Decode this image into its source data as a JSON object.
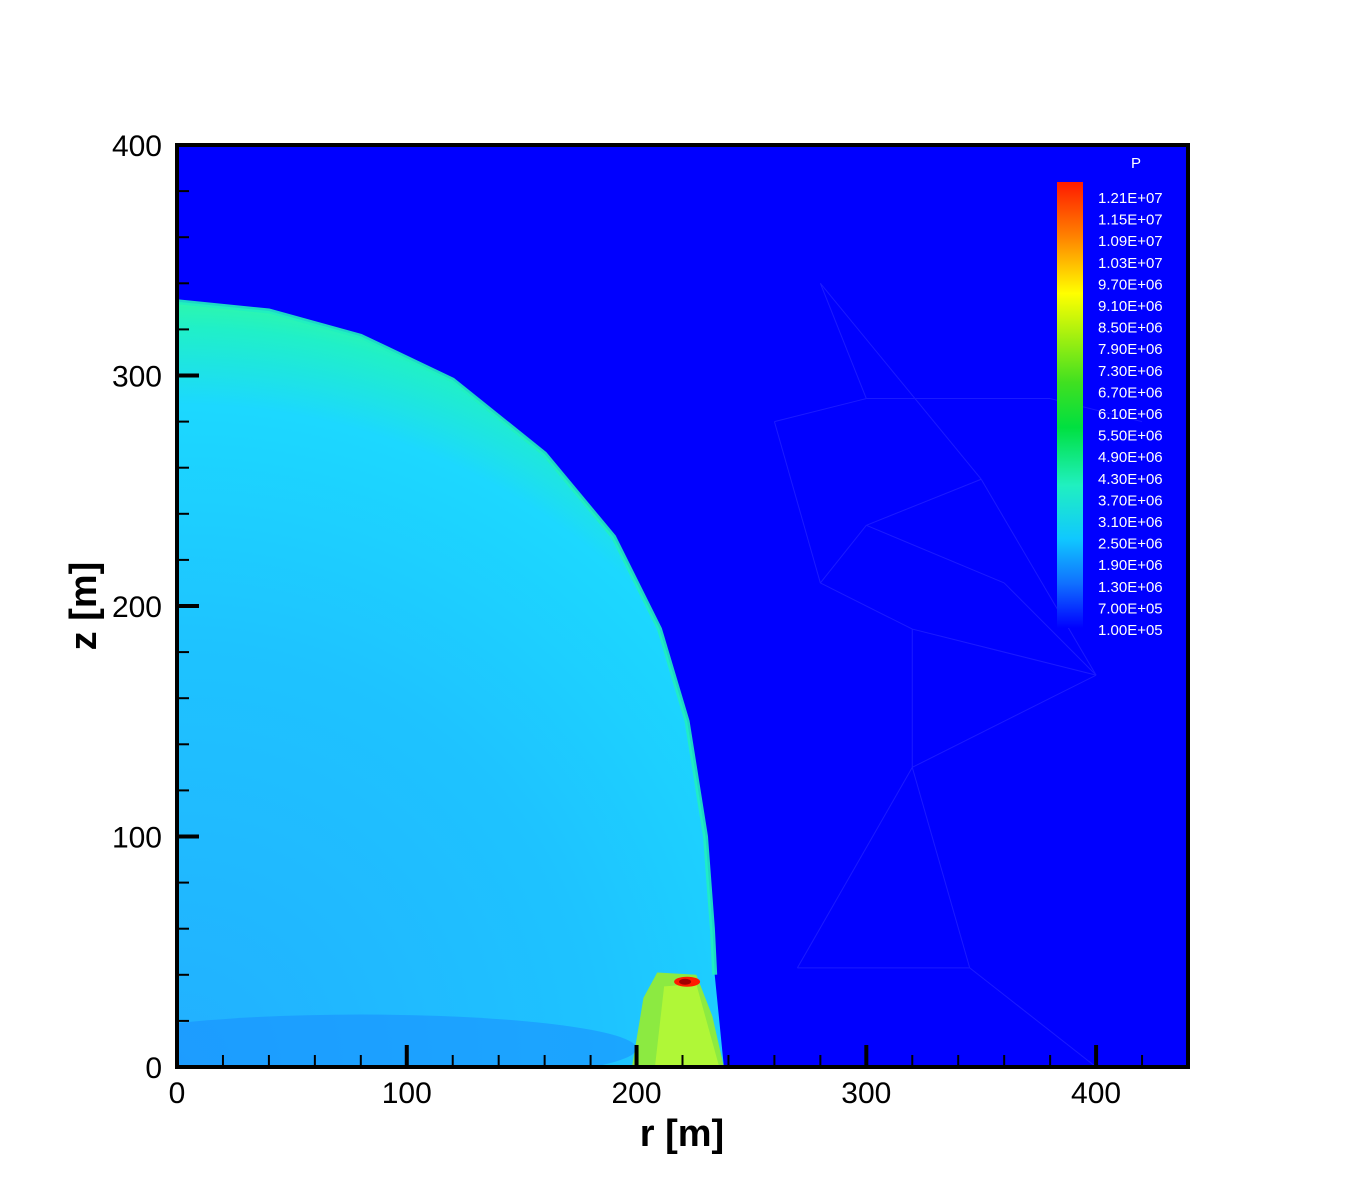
{
  "chart_data": {
    "type": "heatmap",
    "variable": "P",
    "xlabel": "r [m]",
    "ylabel": "z [m]",
    "xlim": [
      0,
      440
    ],
    "ylim": [
      0,
      400
    ],
    "xticks": [
      0,
      100,
      200,
      300,
      400
    ],
    "yticks": [
      0,
      100,
      200,
      300,
      400
    ],
    "x_tick_labels": [
      "0",
      "100",
      "200",
      "300",
      "400"
    ],
    "y_tick_labels": [
      "0",
      "100",
      "200",
      "300",
      "400"
    ],
    "legend": {
      "title": "P",
      "placement": "top-right",
      "levels": [
        "1.21E+07",
        "1.15E+07",
        "1.09E+07",
        "1.03E+07",
        "9.70E+06",
        "9.10E+06",
        "8.50E+06",
        "7.90E+06",
        "7.30E+06",
        "6.70E+06",
        "6.10E+06",
        "5.50E+06",
        "4.90E+06",
        "4.30E+06",
        "3.70E+06",
        "3.10E+06",
        "2.50E+06",
        "1.90E+06",
        "1.30E+06",
        "7.00E+05",
        "1.00E+05"
      ]
    },
    "shock_front": {
      "r": [
        0,
        40,
        80,
        120,
        160,
        190,
        210,
        222,
        230,
        233,
        234
      ],
      "z": [
        332,
        328,
        317,
        298,
        266,
        230,
        190,
        150,
        100,
        60,
        40
      ]
    },
    "field": {
      "ambient_pressure": 100000,
      "interior_pressure": 2200000,
      "front_pressure": 4000000,
      "reflected_region_pressure": 7000000,
      "peak_pressure": 12100000,
      "peak_location": [
        222,
        37
      ]
    },
    "colors": {
      "ambient": "#0000ff",
      "interior": "#1ec3ff",
      "front": "#20f0c0",
      "reflected": "#a0f020",
      "peak": "#ff1a00"
    }
  }
}
